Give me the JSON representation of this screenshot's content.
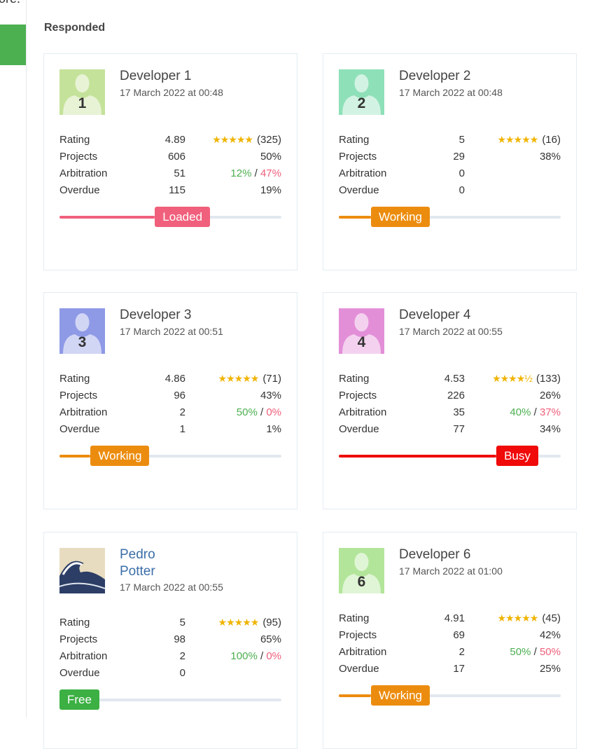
{
  "top_text": "ore.",
  "heading": "Responded",
  "cards": [
    {
      "name": "Developer 1",
      "avatar_number": "1",
      "avatar_color": "#c5e29a",
      "date": "17 March 2022 at 00:48",
      "rating": "4.89",
      "stars": "★★★★★",
      "reviews": "(325)",
      "projects": "606",
      "projects_pct": "50%",
      "arbitration": "51",
      "arb_win": "12%",
      "arb_loss": "47%",
      "overdue": "115",
      "overdue_pct": "19%",
      "status": "Loaded",
      "status_color": "#f0607c",
      "level": 43
    },
    {
      "name": "Developer 2",
      "avatar_number": "2",
      "avatar_color": "#8ee0b8",
      "date": "17 March 2022 at 00:48",
      "rating": "5",
      "stars": "★★★★★",
      "reviews": "(16)",
      "projects": "29",
      "projects_pct": "38%",
      "arbitration": "0",
      "arb_win": "",
      "arb_loss": "",
      "overdue": "0",
      "overdue_pct": "",
      "status": "Working",
      "status_color": "#ec8c0f",
      "level": 14.5
    },
    {
      "name": "Developer 3",
      "avatar_number": "3",
      "avatar_color": "#8e9ae6",
      "date": "17 March 2022 at 00:51",
      "rating": "4.86",
      "stars": "★★★★★",
      "reviews": "(71)",
      "projects": "96",
      "projects_pct": "43%",
      "arbitration": "2",
      "arb_win": "50%",
      "arb_loss": "0%",
      "overdue": "1",
      "overdue_pct": "1%",
      "status": "Working",
      "status_color": "#ec8c0f",
      "level": 14
    },
    {
      "name": "Developer 4",
      "avatar_number": "4",
      "avatar_color": "#e38fd8",
      "date": "17 March 2022 at 00:55",
      "rating": "4.53",
      "stars": "★★★★½",
      "reviews": "(133)",
      "projects": "226",
      "projects_pct": "26%",
      "arbitration": "35",
      "arb_win": "40%",
      "arb_loss": "37%",
      "overdue": "77",
      "overdue_pct": "34%",
      "status": "Busy",
      "status_color": "#f00a0a",
      "level": 71
    },
    {
      "name": "Pedro Potter",
      "avatar_number": "",
      "avatar_color": "photo",
      "date": "17 March 2022 at 00:55",
      "rating": "5",
      "stars": "★★★★★",
      "reviews": "(95)",
      "projects": "98",
      "projects_pct": "65%",
      "arbitration": "2",
      "arb_win": "100%",
      "arb_loss": "0%",
      "overdue": "0",
      "overdue_pct": "",
      "status": "Free",
      "status_color": "#3cb043",
      "level": 0
    },
    {
      "name": "Developer 6",
      "avatar_number": "6",
      "avatar_color": "#b2e59a",
      "date": "17 March 2022 at 01:00",
      "rating": "4.91",
      "stars": "★★★★★",
      "reviews": "(45)",
      "projects": "69",
      "projects_pct": "42%",
      "arbitration": "2",
      "arb_win": "50%",
      "arb_loss": "50%",
      "overdue": "17",
      "overdue_pct": "25%",
      "status": "Working",
      "status_color": "#ec8c0f",
      "level": 14.5
    }
  ],
  "labels": {
    "rating": "Rating",
    "projects": "Projects",
    "arbitration": "Arbitration",
    "overdue": "Overdue"
  }
}
